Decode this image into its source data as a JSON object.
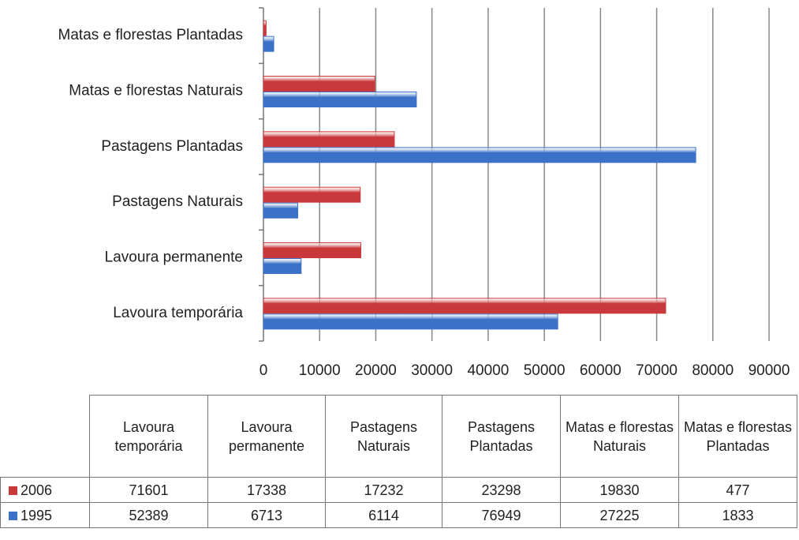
{
  "chart_data": {
    "type": "bar",
    "orientation": "horizontal",
    "categories": [
      "Lavoura temporária",
      "Lavoura permanente",
      "Pastagens Naturais",
      "Pastagens Plantadas",
      "Matas e florestas Naturais",
      "Matas e florestas Plantadas"
    ],
    "series": [
      {
        "name": "2006",
        "color": "#c9393c",
        "values": [
          71601,
          17338,
          17232,
          23298,
          19830,
          477
        ]
      },
      {
        "name": "1995",
        "color": "#3b72c8",
        "values": [
          52389,
          6713,
          6114,
          76949,
          27225,
          1833
        ]
      }
    ],
    "xlim": [
      0,
      90000
    ],
    "xticks": [
      0,
      10000,
      20000,
      30000,
      40000,
      50000,
      60000,
      70000,
      80000,
      90000
    ],
    "grid": true
  }
}
